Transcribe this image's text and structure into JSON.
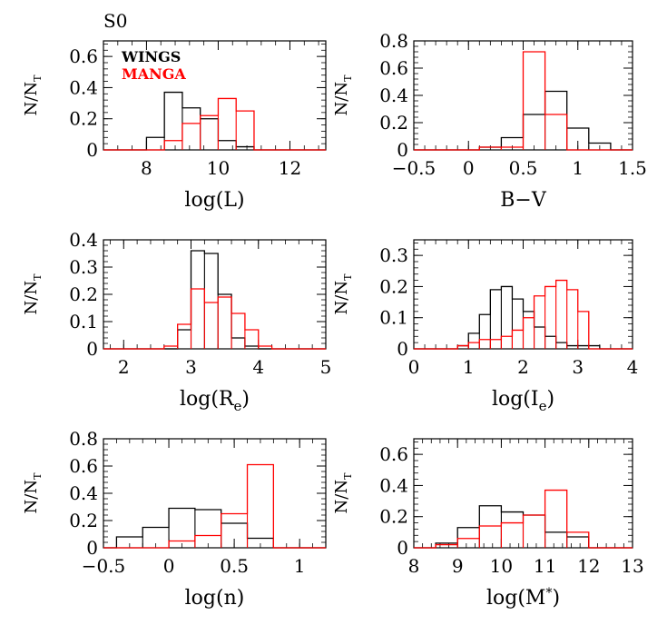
{
  "figure": {
    "title": "S0",
    "legend": {
      "placement": "top-left of first panel",
      "entries": [
        {
          "name": "WINGS",
          "color": "#000000"
        },
        {
          "name": "MANGA",
          "color": "#ff0000"
        }
      ]
    }
  },
  "chart_data": [
    {
      "type": "histogram",
      "xlabel": "log(L)",
      "ylabel": "N/N_T",
      "xlim": [
        6.8,
        13
      ],
      "ylim": [
        0,
        0.7
      ],
      "xticks": [
        {
          "v": 8,
          "t": "8"
        },
        {
          "v": 10,
          "t": "10"
        },
        {
          "v": 12,
          "t": "12"
        }
      ],
      "yticks": [
        {
          "v": 0,
          "t": "0"
        },
        {
          "v": 0.2,
          "t": "0.2"
        },
        {
          "v": 0.4,
          "t": "0.4"
        },
        {
          "v": 0.6,
          "t": "0.6"
        }
      ],
      "bin_edges": [
        7.5,
        8.0,
        8.5,
        9.0,
        9.5,
        10.0,
        10.5,
        11.0,
        11.5,
        12.0
      ],
      "series": [
        {
          "name": "WINGS",
          "color": "#000000",
          "values": [
            0.0,
            0.08,
            0.37,
            0.27,
            0.2,
            0.06,
            0.02,
            0.0,
            0.0
          ]
        },
        {
          "name": "MANGA",
          "color": "#ff0000",
          "values": [
            0.0,
            0.0,
            0.06,
            0.17,
            0.22,
            0.33,
            0.25,
            0.0,
            0.0
          ]
        }
      ]
    },
    {
      "type": "histogram",
      "xlabel": "B−V",
      "ylabel": "N/N_T",
      "xlim": [
        -0.5,
        1.5
      ],
      "ylim": [
        0,
        0.8
      ],
      "xticks": [
        {
          "v": -0.5,
          "t": "−0.5"
        },
        {
          "v": 0,
          "t": "0"
        },
        {
          "v": 0.5,
          "t": "0.5"
        },
        {
          "v": 1,
          "t": "1"
        },
        {
          "v": 1.5,
          "t": "1.5"
        }
      ],
      "yticks": [
        {
          "v": 0,
          "t": "0"
        },
        {
          "v": 0.2,
          "t": "0.2"
        },
        {
          "v": 0.4,
          "t": "0.4"
        },
        {
          "v": 0.6,
          "t": "0.6"
        },
        {
          "v": 0.8,
          "t": "0.8"
        }
      ],
      "bin_edges": [
        0.1,
        0.3,
        0.5,
        0.7,
        0.9,
        1.1,
        1.3
      ],
      "series": [
        {
          "name": "WINGS",
          "color": "#000000",
          "values": [
            0.02,
            0.09,
            0.26,
            0.43,
            0.16,
            0.05
          ]
        },
        {
          "name": "MANGA",
          "color": "#ff0000",
          "values": [
            0.02,
            0.02,
            0.72,
            0.26,
            0.0,
            0.0
          ]
        }
      ]
    },
    {
      "type": "histogram",
      "xlabel": "log(Re)",
      "xlabel_main": "log(R",
      "xlabel_sub": "e",
      "xlabel_end": ")",
      "ylabel": "N/N_T",
      "xlim": [
        1.7,
        5
      ],
      "ylim": [
        0,
        0.4
      ],
      "xticks": [
        {
          "v": 2,
          "t": "2"
        },
        {
          "v": 3,
          "t": "3"
        },
        {
          "v": 4,
          "t": "4"
        },
        {
          "v": 5,
          "t": "5"
        }
      ],
      "yticks": [
        {
          "v": 0,
          "t": "0"
        },
        {
          "v": 0.1,
          "t": "0.1"
        },
        {
          "v": 0.2,
          "t": "0.2"
        },
        {
          "v": 0.3,
          "t": "0.3"
        },
        {
          "v": 0.4,
          "t": "0.4"
        }
      ],
      "bin_edges": [
        2.6,
        2.8,
        3.0,
        3.2,
        3.4,
        3.6,
        3.8,
        4.0,
        4.2
      ],
      "series": [
        {
          "name": "WINGS",
          "color": "#000000",
          "values": [
            0.0,
            0.07,
            0.36,
            0.35,
            0.2,
            0.04,
            0.01,
            0.0
          ]
        },
        {
          "name": "MANGA",
          "color": "#ff0000",
          "values": [
            0.01,
            0.09,
            0.22,
            0.17,
            0.19,
            0.13,
            0.07,
            0.01
          ]
        }
      ]
    },
    {
      "type": "histogram",
      "xlabel": "log(Ie)",
      "xlabel_main": "log(I",
      "xlabel_sub": "e",
      "xlabel_end": ")",
      "ylabel": "N/N_T",
      "xlim": [
        0,
        4
      ],
      "ylim": [
        0,
        0.35
      ],
      "xticks": [
        {
          "v": 0,
          "t": "0"
        },
        {
          "v": 1,
          "t": "1"
        },
        {
          "v": 2,
          "t": "2"
        },
        {
          "v": 3,
          "t": "3"
        },
        {
          "v": 4,
          "t": "4"
        }
      ],
      "yticks": [
        {
          "v": 0,
          "t": "0"
        },
        {
          "v": 0.1,
          "t": "0.1"
        },
        {
          "v": 0.2,
          "t": "0.2"
        },
        {
          "v": 0.3,
          "t": "0.3"
        }
      ],
      "bin_edges": [
        0.6,
        0.8,
        1.0,
        1.2,
        1.4,
        1.6,
        1.8,
        2.0,
        2.2,
        2.4,
        2.6,
        2.8,
        3.0,
        3.2,
        3.4
      ],
      "series": [
        {
          "name": "WINGS",
          "color": "#000000",
          "values": [
            0.0,
            0.01,
            0.05,
            0.11,
            0.19,
            0.2,
            0.16,
            0.12,
            0.07,
            0.04,
            0.02,
            0.01,
            0.01,
            0.01
          ]
        },
        {
          "name": "MANGA",
          "color": "#ff0000",
          "values": [
            0.0,
            0.01,
            0.02,
            0.03,
            0.03,
            0.04,
            0.06,
            0.1,
            0.17,
            0.2,
            0.22,
            0.19,
            0.12,
            0.0
          ]
        }
      ]
    },
    {
      "type": "histogram",
      "xlabel": "log(n)",
      "ylabel": "N/N_T",
      "xlim": [
        -0.5,
        1.2
      ],
      "ylim": [
        0,
        0.8
      ],
      "xticks": [
        {
          "v": -0.5,
          "t": "−0.5"
        },
        {
          "v": 0,
          "t": "0"
        },
        {
          "v": 0.5,
          "t": "0.5"
        },
        {
          "v": 1,
          "t": "1"
        }
      ],
      "yticks": [
        {
          "v": 0,
          "t": "0"
        },
        {
          "v": 0.2,
          "t": "0.2"
        },
        {
          "v": 0.4,
          "t": "0.4"
        },
        {
          "v": 0.6,
          "t": "0.6"
        },
        {
          "v": 0.8,
          "t": "0.8"
        }
      ],
      "bin_edges": [
        -0.4,
        -0.2,
        0.0,
        0.2,
        0.4,
        0.6,
        0.8,
        1.0
      ],
      "series": [
        {
          "name": "WINGS",
          "color": "#000000",
          "values": [
            0.08,
            0.15,
            0.29,
            0.28,
            0.18,
            0.07,
            0.0
          ]
        },
        {
          "name": "MANGA",
          "color": "#ff0000",
          "values": [
            0.0,
            0.0,
            0.05,
            0.09,
            0.25,
            0.61,
            0.0
          ]
        }
      ]
    },
    {
      "type": "histogram",
      "xlabel": "log(M*)",
      "xlabel_main": "log(M",
      "xlabel_sup": "*",
      "xlabel_end": ")",
      "ylabel": "N/N_T",
      "xlim": [
        8,
        13
      ],
      "ylim": [
        0,
        0.7
      ],
      "xticks": [
        {
          "v": 8,
          "t": "8"
        },
        {
          "v": 9,
          "t": "9"
        },
        {
          "v": 10,
          "t": "10"
        },
        {
          "v": 11,
          "t": "11"
        },
        {
          "v": 12,
          "t": "12"
        },
        {
          "v": 13,
          "t": "13"
        }
      ],
      "yticks": [
        {
          "v": 0,
          "t": "0"
        },
        {
          "v": 0.2,
          "t": "0.2"
        },
        {
          "v": 0.4,
          "t": "0.4"
        },
        {
          "v": 0.6,
          "t": "0.6"
        }
      ],
      "bin_edges": [
        8.5,
        9.0,
        9.5,
        10.0,
        10.5,
        11.0,
        11.5,
        12.0
      ],
      "series": [
        {
          "name": "WINGS",
          "color": "#000000",
          "values": [
            0.03,
            0.13,
            0.27,
            0.23,
            0.21,
            0.1,
            0.07
          ]
        },
        {
          "name": "MANGA",
          "color": "#ff0000",
          "values": [
            0.02,
            0.06,
            0.14,
            0.16,
            0.21,
            0.37,
            0.1
          ]
        }
      ]
    }
  ]
}
